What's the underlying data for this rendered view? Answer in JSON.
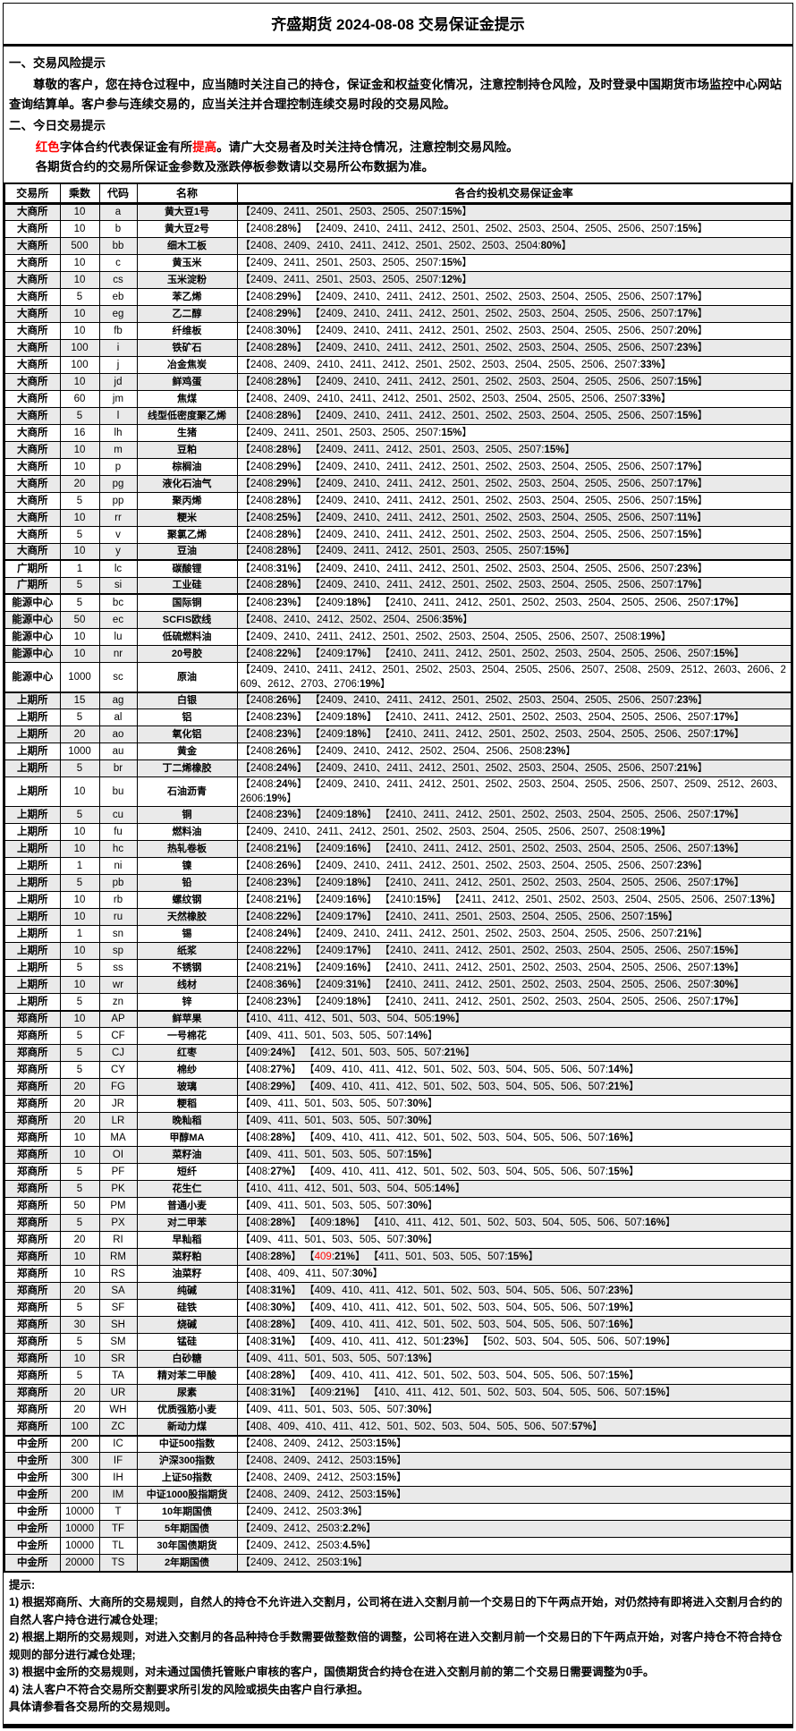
{
  "title": "齐盛期货 2024-08-08 交易保证金提示",
  "colors": {
    "red": "#ff0000",
    "stripe": "#eaeaea"
  },
  "section1": {
    "heading": "一、交易风险提示",
    "body": "尊敬的客户，您在持仓过程中，应当随时关注自己的持仓，保证金和权益变化情况，注意控制持仓风险，及时登录中国期货市场监控中心网站查询结算单。客户参与连续交易的，应当关注并合理控制连续交易时段的交易风险。"
  },
  "section2": {
    "heading": "二、今日交易提示",
    "line1_parts": [
      {
        "t": "红色",
        "red": true
      },
      {
        "t": "字体合约代表保证金有所",
        "red": false
      },
      {
        "t": "提高",
        "red": true
      },
      {
        "t": "。请广大交易者及时关注持仓情况，注意控制交易风险。",
        "red": false
      }
    ],
    "line2": "各期货合约的交易所保证金参数及涨跌停板参数请以交易所公布数据为准。"
  },
  "table": {
    "headers": [
      "交易所",
      "乘数",
      "代码",
      "名称",
      "各合约投机交易保证金率"
    ],
    "rows": [
      {
        "ex": "大商所",
        "mult": "10",
        "code": "a",
        "name": "黄大豆1号",
        "rate": "【2409、2411、2501、2503、2505、2507:15%】"
      },
      {
        "ex": "大商所",
        "mult": "10",
        "code": "b",
        "name": "黄大豆2号",
        "rate": "【2408:28%】 【2409、2410、2411、2412、2501、2502、2503、2504、2505、2506、2507:15%】"
      },
      {
        "ex": "大商所",
        "mult": "500",
        "code": "bb",
        "name": "细木工板",
        "rate": "【2408、2409、2410、2411、2412、2501、2502、2503、2504:80%】"
      },
      {
        "ex": "大商所",
        "mult": "10",
        "code": "c",
        "name": "黄玉米",
        "rate": "【2409、2411、2501、2503、2505、2507:15%】"
      },
      {
        "ex": "大商所",
        "mult": "10",
        "code": "cs",
        "name": "玉米淀粉",
        "rate": "【2409、2411、2501、2503、2505、2507:12%】"
      },
      {
        "ex": "大商所",
        "mult": "5",
        "code": "eb",
        "name": "苯乙烯",
        "rate": "【2408:29%】 【2409、2410、2411、2412、2501、2502、2503、2504、2505、2506、2507:17%】"
      },
      {
        "ex": "大商所",
        "mult": "10",
        "code": "eg",
        "name": "乙二醇",
        "rate": "【2408:29%】 【2409、2410、2411、2412、2501、2502、2503、2504、2505、2506、2507:17%】"
      },
      {
        "ex": "大商所",
        "mult": "10",
        "code": "fb",
        "name": "纤维板",
        "rate": "【2408:30%】 【2409、2410、2411、2412、2501、2502、2503、2504、2505、2506、2507:20%】"
      },
      {
        "ex": "大商所",
        "mult": "100",
        "code": "i",
        "name": "铁矿石",
        "rate": "【2408:28%】 【2409、2410、2411、2412、2501、2502、2503、2504、2505、2506、2507:23%】"
      },
      {
        "ex": "大商所",
        "mult": "100",
        "code": "j",
        "name": "冶金焦炭",
        "rate": "【2408、2409、2410、2411、2412、2501、2502、2503、2504、2505、2506、2507:33%】"
      },
      {
        "ex": "大商所",
        "mult": "10",
        "code": "jd",
        "name": "鲜鸡蛋",
        "rate": "【2408:28%】 【2409、2410、2411、2412、2501、2502、2503、2504、2505、2506、2507:15%】"
      },
      {
        "ex": "大商所",
        "mult": "60",
        "code": "jm",
        "name": "焦煤",
        "rate": "【2408、2409、2410、2411、2412、2501、2502、2503、2504、2505、2506、2507:33%】"
      },
      {
        "ex": "大商所",
        "mult": "5",
        "code": "l",
        "name": "线型低密度聚乙烯",
        "rate": "【2408:28%】 【2409、2410、2411、2412、2501、2502、2503、2504、2505、2506、2507:15%】"
      },
      {
        "ex": "大商所",
        "mult": "16",
        "code": "lh",
        "name": "生猪",
        "rate": "【2409、2411、2501、2503、2505、2507:15%】"
      },
      {
        "ex": "大商所",
        "mult": "10",
        "code": "m",
        "name": "豆粕",
        "rate": "【2408:28%】 【2409、2411、2412、2501、2503、2505、2507:15%】"
      },
      {
        "ex": "大商所",
        "mult": "10",
        "code": "p",
        "name": "棕榈油",
        "rate": "【2408:29%】 【2409、2410、2411、2412、2501、2502、2503、2504、2505、2506、2507:17%】"
      },
      {
        "ex": "大商所",
        "mult": "20",
        "code": "pg",
        "name": "液化石油气",
        "rate": "【2408:29%】 【2409、2410、2411、2412、2501、2502、2503、2504、2505、2506、2507:17%】"
      },
      {
        "ex": "大商所",
        "mult": "5",
        "code": "pp",
        "name": "聚丙烯",
        "rate": "【2408:28%】 【2409、2410、2411、2412、2501、2502、2503、2504、2505、2506、2507:15%】"
      },
      {
        "ex": "大商所",
        "mult": "10",
        "code": "rr",
        "name": "粳米",
        "rate": "【2408:25%】 【2409、2410、2411、2412、2501、2502、2503、2504、2505、2506、2507:11%】"
      },
      {
        "ex": "大商所",
        "mult": "5",
        "code": "v",
        "name": "聚氯乙烯",
        "rate": "【2408:28%】 【2409、2410、2411、2412、2501、2502、2503、2504、2505、2506、2507:15%】"
      },
      {
        "ex": "大商所",
        "mult": "10",
        "code": "y",
        "name": "豆油",
        "rate": "【2408:28%】 【2409、2411、2412、2501、2503、2505、2507:15%】"
      },
      {
        "ex": "广期所",
        "mult": "1",
        "code": "lc",
        "name": "碳酸锂",
        "rate": "【2408:31%】 【2409、2410、2411、2412、2501、2502、2503、2504、2505、2506、2507:23%】"
      },
      {
        "ex": "广期所",
        "mult": "5",
        "code": "si",
        "name": "工业硅",
        "rate": "【2408:28%】 【2409、2410、2411、2412、2501、2502、2503、2504、2505、2506、2507:17%】"
      },
      {
        "ex": "能源中心",
        "mult": "5",
        "code": "bc",
        "name": "国际铜",
        "rate": "【2408:23%】 【2409:18%】 【2410、2411、2412、2501、2502、2503、2504、2505、2506、2507:17%】"
      },
      {
        "ex": "能源中心",
        "mult": "50",
        "code": "ec",
        "name": "SCFIS欧线",
        "rate": "【2408、2410、2412、2502、2504、2506:35%】"
      },
      {
        "ex": "能源中心",
        "mult": "10",
        "code": "lu",
        "name": "低硫燃料油",
        "rate": "【2409、2410、2411、2412、2501、2502、2503、2504、2505、2506、2507、2508:19%】"
      },
      {
        "ex": "能源中心",
        "mult": "10",
        "code": "nr",
        "name": "20号胶",
        "rate": "【2408:22%】 【2409:17%】 【2410、2411、2412、2501、2502、2503、2504、2505、2506、2507:15%】"
      },
      {
        "ex": "能源中心",
        "mult": "1000",
        "code": "sc",
        "name": "原油",
        "rate": "【2409、2410、2411、2412、2501、2502、2503、2504、2505、2506、2507、2508、2509、2512、2603、2606、2609、2612、2703、2706:19%】"
      },
      {
        "ex": "上期所",
        "mult": "15",
        "code": "ag",
        "name": "白银",
        "rate": "【2408:26%】 【2409、2410、2411、2412、2501、2502、2503、2504、2505、2506、2507:23%】"
      },
      {
        "ex": "上期所",
        "mult": "5",
        "code": "al",
        "name": "铝",
        "rate": "【2408:23%】 【2409:18%】 【2410、2411、2412、2501、2502、2503、2504、2505、2506、2507:17%】"
      },
      {
        "ex": "上期所",
        "mult": "20",
        "code": "ao",
        "name": "氧化铝",
        "rate": "【2408:23%】 【2409:18%】 【2410、2411、2412、2501、2502、2503、2504、2505、2506、2507:17%】"
      },
      {
        "ex": "上期所",
        "mult": "1000",
        "code": "au",
        "name": "黄金",
        "rate": "【2408:26%】 【2409、2410、2412、2502、2504、2506、2508:23%】"
      },
      {
        "ex": "上期所",
        "mult": "5",
        "code": "br",
        "name": "丁二烯橡胶",
        "rate": "【2408:24%】 【2409、2410、2411、2412、2501、2502、2503、2504、2505、2506、2507:21%】"
      },
      {
        "ex": "上期所",
        "mult": "10",
        "code": "bu",
        "name": "石油沥青",
        "rate": "【2408:24%】 【2409、2410、2411、2412、2501、2502、2503、2504、2505、2506、2507、2509、2512、2603、2606:19%】"
      },
      {
        "ex": "上期所",
        "mult": "5",
        "code": "cu",
        "name": "铜",
        "rate": "【2408:23%】 【2409:18%】 【2410、2411、2412、2501、2502、2503、2504、2505、2506、2507:17%】"
      },
      {
        "ex": "上期所",
        "mult": "10",
        "code": "fu",
        "name": "燃料油",
        "rate": "【2409、2410、2411、2412、2501、2502、2503、2504、2505、2506、2507、2508:19%】"
      },
      {
        "ex": "上期所",
        "mult": "10",
        "code": "hc",
        "name": "热轧卷板",
        "rate": "【2408:21%】 【2409:16%】 【2410、2411、2412、2501、2502、2503、2504、2505、2506、2507:13%】"
      },
      {
        "ex": "上期所",
        "mult": "1",
        "code": "ni",
        "name": "镍",
        "rate": "【2408:26%】 【2409、2410、2411、2412、2501、2502、2503、2504、2505、2506、2507:23%】"
      },
      {
        "ex": "上期所",
        "mult": "5",
        "code": "pb",
        "name": "铅",
        "rate": "【2408:23%】 【2409:18%】 【2410、2411、2412、2501、2502、2503、2504、2505、2506、2507:17%】"
      },
      {
        "ex": "上期所",
        "mult": "10",
        "code": "rb",
        "name": "螺纹钢",
        "rate": "【2408:21%】 【2409:16%】 【2410:15%】 【2411、2412、2501、2502、2503、2504、2505、2506、2507:13%】"
      },
      {
        "ex": "上期所",
        "mult": "10",
        "code": "ru",
        "name": "天然橡胶",
        "rate": "【2408:22%】 【2409:17%】 【2410、2411、2501、2503、2504、2505、2506、2507:15%】"
      },
      {
        "ex": "上期所",
        "mult": "1",
        "code": "sn",
        "name": "锡",
        "rate": "【2408:24%】 【2409、2410、2411、2412、2501、2502、2503、2504、2505、2506、2507:21%】"
      },
      {
        "ex": "上期所",
        "mult": "10",
        "code": "sp",
        "name": "纸浆",
        "rate": "【2408:22%】 【2409:17%】 【2410、2411、2412、2501、2502、2503、2504、2505、2506、2507:15%】"
      },
      {
        "ex": "上期所",
        "mult": "5",
        "code": "ss",
        "name": "不锈钢",
        "rate": "【2408:21%】 【2409:16%】 【2410、2411、2412、2501、2502、2503、2504、2505、2506、2507:13%】"
      },
      {
        "ex": "上期所",
        "mult": "10",
        "code": "wr",
        "name": "线材",
        "rate": "【2408:36%】 【2409:31%】 【2410、2411、2412、2501、2502、2503、2504、2505、2506、2507:30%】"
      },
      {
        "ex": "上期所",
        "mult": "5",
        "code": "zn",
        "name": "锌",
        "rate": "【2408:23%】 【2409:18%】 【2410、2411、2412、2501、2502、2503、2504、2505、2506、2507:17%】"
      },
      {
        "ex": "郑商所",
        "mult": "10",
        "code": "AP",
        "name": "鲜苹果",
        "rate": "【410、411、412、501、503、504、505:19%】"
      },
      {
        "ex": "郑商所",
        "mult": "5",
        "code": "CF",
        "name": "一号棉花",
        "rate": "【409、411、501、503、505、507:14%】"
      },
      {
        "ex": "郑商所",
        "mult": "5",
        "code": "CJ",
        "name": "红枣",
        "rate": "【409:24%】 【412、501、503、505、507:21%】"
      },
      {
        "ex": "郑商所",
        "mult": "5",
        "code": "CY",
        "name": "棉纱",
        "rate": "【408:27%】 【409、410、411、412、501、502、503、504、505、506、507:14%】"
      },
      {
        "ex": "郑商所",
        "mult": "20",
        "code": "FG",
        "name": "玻璃",
        "rate": "【408:29%】 【409、410、411、412、501、502、503、504、505、506、507:21%】"
      },
      {
        "ex": "郑商所",
        "mult": "20",
        "code": "JR",
        "name": "粳稻",
        "rate": "【409、411、501、503、505、507:30%】"
      },
      {
        "ex": "郑商所",
        "mult": "20",
        "code": "LR",
        "name": "晚籼稻",
        "rate": "【409、411、501、503、505、507:30%】"
      },
      {
        "ex": "郑商所",
        "mult": "10",
        "code": "MA",
        "name": "甲醇MA",
        "rate": "【408:28%】 【409、410、411、412、501、502、503、504、505、506、507:16%】"
      },
      {
        "ex": "郑商所",
        "mult": "10",
        "code": "OI",
        "name": "菜籽油",
        "rate": "【409、411、501、503、505、507:15%】"
      },
      {
        "ex": "郑商所",
        "mult": "5",
        "code": "PF",
        "name": "短纤",
        "rate": "【408:27%】 【409、410、411、412、501、502、503、504、505、506、507:15%】"
      },
      {
        "ex": "郑商所",
        "mult": "5",
        "code": "PK",
        "name": "花生仁",
        "rate": "【410、411、412、501、503、504、505:14%】"
      },
      {
        "ex": "郑商所",
        "mult": "50",
        "code": "PM",
        "name": "普通小麦",
        "rate": "【409、411、501、503、505、507:30%】"
      },
      {
        "ex": "郑商所",
        "mult": "5",
        "code": "PX",
        "name": "对二甲苯",
        "rate": "【408:28%】 【409:18%】 【410、411、412、501、502、503、504、505、506、507:16%】"
      },
      {
        "ex": "郑商所",
        "mult": "20",
        "code": "RI",
        "name": "早籼稻",
        "rate": "【409、411、501、503、505、507:30%】"
      },
      {
        "ex": "郑商所",
        "mult": "10",
        "code": "RM",
        "name": "菜籽粕",
        "rate": "【408:28%】 【409:21%】 【411、501、503、505、507:15%】",
        "red": "409"
      },
      {
        "ex": "郑商所",
        "mult": "10",
        "code": "RS",
        "name": "油菜籽",
        "rate": "【408、409、411、507:30%】"
      },
      {
        "ex": "郑商所",
        "mult": "20",
        "code": "SA",
        "name": "纯碱",
        "rate": "【408:31%】 【409、410、411、412、501、502、503、504、505、506、507:23%】"
      },
      {
        "ex": "郑商所",
        "mult": "5",
        "code": "SF",
        "name": "硅铁",
        "rate": "【408:30%】 【409、410、411、412、501、502、503、504、505、506、507:19%】"
      },
      {
        "ex": "郑商所",
        "mult": "30",
        "code": "SH",
        "name": "烧碱",
        "rate": "【408:28%】 【409、410、411、412、501、502、503、504、505、506、507:16%】"
      },
      {
        "ex": "郑商所",
        "mult": "5",
        "code": "SM",
        "name": "锰硅",
        "rate": "【408:31%】 【409、410、411、412、501:23%】 【502、503、504、505、506、507:19%】"
      },
      {
        "ex": "郑商所",
        "mult": "10",
        "code": "SR",
        "name": "白砂糖",
        "rate": "【409、411、501、503、505、507:13%】"
      },
      {
        "ex": "郑商所",
        "mult": "5",
        "code": "TA",
        "name": "精对苯二甲酸",
        "rate": "【408:28%】 【409、410、411、412、501、502、503、504、505、506、507:15%】"
      },
      {
        "ex": "郑商所",
        "mult": "20",
        "code": "UR",
        "name": "尿素",
        "rate": "【408:31%】 【409:21%】 【410、411、412、501、502、503、504、505、506、507:15%】"
      },
      {
        "ex": "郑商所",
        "mult": "20",
        "code": "WH",
        "name": "优质强筋小麦",
        "rate": "【409、411、501、503、505、507:30%】"
      },
      {
        "ex": "郑商所",
        "mult": "100",
        "code": "ZC",
        "name": "新动力煤",
        "rate": "【408、409、410、411、412、501、502、503、504、505、506、507:57%】"
      },
      {
        "ex": "中金所",
        "mult": "200",
        "code": "IC",
        "name": "中证500指数",
        "rate": "【2408、2409、2412、2503:15%】"
      },
      {
        "ex": "中金所",
        "mult": "300",
        "code": "IF",
        "name": "沪深300指数",
        "rate": "【2408、2409、2412、2503:15%】"
      },
      {
        "ex": "中金所",
        "mult": "300",
        "code": "IH",
        "name": "上证50指数",
        "rate": "【2408、2409、2412、2503:15%】"
      },
      {
        "ex": "中金所",
        "mult": "200",
        "code": "IM",
        "name": "中证1000股指期货",
        "rate": "【2408、2409、2412、2503:15%】"
      },
      {
        "ex": "中金所",
        "mult": "10000",
        "code": "T",
        "name": "10年期国债",
        "rate": "【2409、2412、2503:3%】"
      },
      {
        "ex": "中金所",
        "mult": "10000",
        "code": "TF",
        "name": "5年期国债",
        "rate": "【2409、2412、2503:2.2%】"
      },
      {
        "ex": "中金所",
        "mult": "10000",
        "code": "TL",
        "name": "30年国债期货",
        "rate": "【2409、2412、2503:4.5%】"
      },
      {
        "ex": "中金所",
        "mult": "20000",
        "code": "TS",
        "name": "2年期国债",
        "rate": "【2409、2412、2503:1%】"
      }
    ]
  },
  "notes": {
    "heading": "提示:",
    "items": [
      "1) 根据郑商所、大商所的交易规则，自然人的持仓不允许进入交割月，公司将在进入交割月前一个交易日的下午两点开始，对仍然持有即将进入交割月合约的自然人客户持仓进行减仓处理;",
      "2) 根据上期所的交易规则，对进入交割月的各品种持仓手数需要做整数倍的调整，公司将在进入交割月前一个交易日的下午两点开始，对客户持仓不符合持仓规则的部分进行减仓处理;",
      "3) 根据中金所的交易规则，对未通过国债托管账户审核的客户，国债期货合约持仓在进入交割月前的第二个交易日需要调整为0手。",
      "4) 法人客户不符合交易所交割要求所引发的风险或损失由客户自行承担。"
    ],
    "footer": "具体请参看各交易所的交易规则。"
  }
}
